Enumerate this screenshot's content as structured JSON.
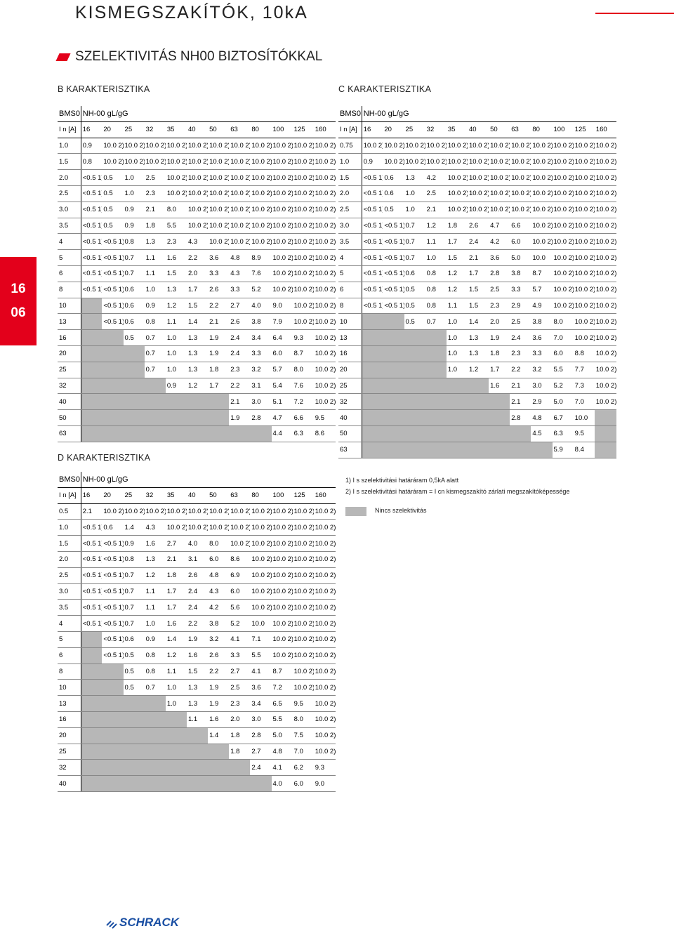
{
  "title": "KISMEGSZAKÍTÓK, 10kA",
  "subtitle": "SZELEKTIVITÁS NH00 BIZTOSÍTÓKKAL",
  "side_tab": {
    "top": "16",
    "bottom": "06"
  },
  "labels": {
    "b": "B KARAKTERISZTIKA",
    "c": "C KARAKTERISZTIKA",
    "d": "D KARAKTERISZTIKA"
  },
  "header_bms": "BMS0",
  "header_fuse": "NH-00 gL/gG",
  "in_label": "I n [A]",
  "fuse_ratings": [
    "16",
    "20",
    "25",
    "32",
    "35",
    "40",
    "50",
    "63",
    "80",
    "100",
    "125",
    "160"
  ],
  "tables": {
    "b": [
      [
        "1.0",
        "0.9",
        "10.0 2)",
        "10.0 2)",
        "10.0 2)",
        "10.0 2)",
        "10.0 2)",
        "10.0 2)",
        "10.0 2)",
        "10.0 2)",
        "10.0 2)",
        "10.0 2)",
        "10.0 2)"
      ],
      [
        "1.5",
        "0.8",
        "10.0 2)",
        "10.0 2)",
        "10.0 2)",
        "10.0 2)",
        "10.0 2)",
        "10.0 2)",
        "10.0 2)",
        "10.0 2)",
        "10.0 2)",
        "10.0 2)",
        "10.0 2)"
      ],
      [
        "2.0",
        "<0.5 1)",
        "0.5",
        "1.0",
        "2.5",
        "10.0 2)",
        "10.0 2)",
        "10.0 2)",
        "10.0 2)",
        "10.0 2)",
        "10.0 2)",
        "10.0 2)",
        "10.0 2)"
      ],
      [
        "2.5",
        "<0.5 1)",
        "0.5",
        "1.0",
        "2.3",
        "10.0 2)",
        "10.0 2)",
        "10.0 2)",
        "10.0 2)",
        "10.0 2)",
        "10.0 2)",
        "10.0 2)",
        "10.0 2)"
      ],
      [
        "3.0",
        "<0.5 1)",
        "0.5",
        "0.9",
        "2.1",
        "8.0",
        "10.0 2)",
        "10.0 2)",
        "10.0 2)",
        "10.0 2)",
        "10.0 2)",
        "10.0 2)",
        "10.0 2)"
      ],
      [
        "3.5",
        "<0.5 1)",
        "0.5",
        "0.9",
        "1.8",
        "5.5",
        "10.0 2)",
        "10.0 2)",
        "10.0 2)",
        "10.0 2)",
        "10.0 2)",
        "10.0 2)",
        "10.0 2)"
      ],
      [
        "4",
        "<0.5 1)",
        "<0.5 1)",
        "0.8",
        "1.3",
        "2.3",
        "4.3",
        "10.0 2)",
        "10.0 2)",
        "10.0 2)",
        "10.0 2)",
        "10.0 2)",
        "10.0 2)"
      ],
      [
        "5",
        "<0.5 1)",
        "<0.5 1)",
        "0.7",
        "1.1",
        "1.6",
        "2.2",
        "3.6",
        "4.8",
        "8.9",
        "10.0 2)",
        "10.0 2)",
        "10.0 2)"
      ],
      [
        "6",
        "<0.5 1)",
        "<0.5 1)",
        "0.7",
        "1.1",
        "1.5",
        "2.0",
        "3.3",
        "4.3",
        "7.6",
        "10.0 2)",
        "10.0 2)",
        "10.0 2)"
      ],
      [
        "8",
        "<0.5 1)",
        "<0.5 1)",
        "0.6",
        "1.0",
        "1.3",
        "1.7",
        "2.6",
        "3.3",
        "5.2",
        "10.0 2)",
        "10.0 2)",
        "10.0 2)"
      ],
      [
        "10",
        "",
        "<0.5 1)",
        "0.6",
        "0.9",
        "1.2",
        "1.5",
        "2.2",
        "2.7",
        "4.0",
        "9.0",
        "10.0 2)",
        "10.0 2)"
      ],
      [
        "13",
        "",
        "<0.5 1)",
        "0.6",
        "0.8",
        "1.1",
        "1.4",
        "2.1",
        "2.6",
        "3.8",
        "7.9",
        "10.0 2)",
        "10.0 2)"
      ],
      [
        "16",
        "",
        "",
        "0.5",
        "0.7",
        "1.0",
        "1.3",
        "1.9",
        "2.4",
        "3.4",
        "6.4",
        "9.3",
        "10.0 2)"
      ],
      [
        "20",
        "",
        "",
        "",
        "0.7",
        "1.0",
        "1.3",
        "1.9",
        "2.4",
        "3.3",
        "6.0",
        "8.7",
        "10.0 2)"
      ],
      [
        "25",
        "",
        "",
        "",
        "0.7",
        "1.0",
        "1.3",
        "1.8",
        "2.3",
        "3.2",
        "5.7",
        "8.0",
        "10.0 2)"
      ],
      [
        "32",
        "",
        "",
        "",
        "",
        "0.9",
        "1.2",
        "1.7",
        "2.2",
        "3.1",
        "5.4",
        "7.6",
        "10.0 2)"
      ],
      [
        "40",
        "",
        "",
        "",
        "",
        "",
        "",
        "",
        "2.1",
        "3.0",
        "5.1",
        "7.2",
        "10.0 2)"
      ],
      [
        "50",
        "",
        "",
        "",
        "",
        "",
        "",
        "",
        "1.9",
        "2.8",
        "4.7",
        "6.6",
        "9.5"
      ],
      [
        "63",
        "",
        "",
        "",
        "",
        "",
        "",
        "",
        "",
        "",
        "4.4",
        "6.3",
        "8.6"
      ]
    ],
    "c": [
      [
        "0.75",
        "10.0 2)",
        "10.0 2)",
        "10.0 2)",
        "10.0 2)",
        "10.0 2)",
        "10.0 2)",
        "10.0 2)",
        "10.0 2)",
        "10.0 2)",
        "10.0 2)",
        "10.0 2)",
        "10.0 2)"
      ],
      [
        "1.0",
        "0.9",
        "10.0 2)",
        "10.0 2)",
        "10.0 2)",
        "10.0 2)",
        "10.0 2)",
        "10.0 2)",
        "10.0 2)",
        "10.0 2)",
        "10.0 2)",
        "10.0 2)",
        "10.0 2)"
      ],
      [
        "1.5",
        "<0.5 1)",
        "0.6",
        "1.3",
        "4.2",
        "10.0 2)",
        "10.0 2)",
        "10.0 2)",
        "10.0 2)",
        "10.0 2)",
        "10.0 2)",
        "10.0 2)",
        "10.0 2)"
      ],
      [
        "2.0",
        "<0.5 1)",
        "0.6",
        "1.0",
        "2.5",
        "10.0 2)",
        "10.0 2)",
        "10.0 2)",
        "10.0 2)",
        "10.0 2)",
        "10.0 2)",
        "10.0 2)",
        "10.0 2)"
      ],
      [
        "2.5",
        "<0.5 1)",
        "0.5",
        "1.0",
        "2.1",
        "10.0 2)",
        "10.0 2)",
        "10.0 2)",
        "10.0 2)",
        "10.0 2)",
        "10.0 2)",
        "10.0 2)",
        "10.0 2)"
      ],
      [
        "3.0",
        "<0.5 1)",
        "<0.5 1)",
        "0.7",
        "1.2",
        "1.8",
        "2.6",
        "4.7",
        "6.6",
        "10.0 2)",
        "10.0 2)",
        "10.0 2)",
        "10.0 2)"
      ],
      [
        "3.5",
        "<0.5 1)",
        "<0.5 1)",
        "0.7",
        "1.1",
        "1.7",
        "2.4",
        "4.2",
        "6.0",
        "10.0 2)",
        "10.0 2)",
        "10.0 2)",
        "10.0 2)"
      ],
      [
        "4",
        "<0.5 1)",
        "<0.5 1)",
        "0.7",
        "1.0",
        "1.5",
        "2.1",
        "3.6",
        "5.0",
        "10.0",
        "10.0 2)",
        "10.0 2)",
        "10.0 2)"
      ],
      [
        "5",
        "<0.5 1)",
        "<0.5 1)",
        "0.6",
        "0.8",
        "1.2",
        "1.7",
        "2.8",
        "3.8",
        "8.7",
        "10.0 2)",
        "10.0 2)",
        "10.0 2)"
      ],
      [
        "6",
        "<0.5 1)",
        "<0.5 1)",
        "0.5",
        "0.8",
        "1.2",
        "1.5",
        "2.5",
        "3.3",
        "5.7",
        "10.0 2)",
        "10.0 2)",
        "10.0 2)"
      ],
      [
        "8",
        "<0.5 1)",
        "<0.5 1)",
        "0.5",
        "0.8",
        "1.1",
        "1.5",
        "2.3",
        "2.9",
        "4.9",
        "10.0 2)",
        "10.0 2)",
        "10.0 2)"
      ],
      [
        "10",
        "",
        "",
        "0.5",
        "0.7",
        "1.0",
        "1.4",
        "2.0",
        "2.5",
        "3.8",
        "8.0",
        "10.0 2)",
        "10.0 2)"
      ],
      [
        "13",
        "",
        "",
        "",
        "",
        "1.0",
        "1.3",
        "1.9",
        "2.4",
        "3.6",
        "7.0",
        "10.0 2)",
        "10.0 2)"
      ],
      [
        "16",
        "",
        "",
        "",
        "",
        "1.0",
        "1.3",
        "1.8",
        "2.3",
        "3.3",
        "6.0",
        "8.8",
        "10.0 2)"
      ],
      [
        "20",
        "",
        "",
        "",
        "",
        "1.0",
        "1.2",
        "1.7",
        "2.2",
        "3.2",
        "5.5",
        "7.7",
        "10.0 2)"
      ],
      [
        "25",
        "",
        "",
        "",
        "",
        "",
        "",
        "1.6",
        "2.1",
        "3.0",
        "5.2",
        "7.3",
        "10.0 2)"
      ],
      [
        "32",
        "",
        "",
        "",
        "",
        "",
        "",
        "",
        "2.1",
        "2.9",
        "5.0",
        "7.0",
        "10.0 2)"
      ],
      [
        "40",
        "",
        "",
        "",
        "",
        "",
        "",
        "",
        "2.8",
        "4.8",
        "6.7",
        "10.0",
        ""
      ],
      [
        "50",
        "",
        "",
        "",
        "",
        "",
        "",
        "",
        "",
        "4.5",
        "6.3",
        "9.5",
        ""
      ],
      [
        "63",
        "",
        "",
        "",
        "",
        "",
        "",
        "",
        "",
        "",
        "5.9",
        "8.4",
        ""
      ]
    ],
    "d": [
      [
        "0.5",
        "2.1",
        "10.0 2)",
        "10.0 2)",
        "10.0 2)",
        "10.0 2)",
        "10.0 2)",
        "10.0 2)",
        "10.0 2)",
        "10.0 2)",
        "10.0 2)",
        "10.0 2)",
        "10.0 2)"
      ],
      [
        "1.0",
        "<0.5 1)",
        "0.6",
        "1.4",
        "4.3",
        "10.0 2)",
        "10.0 2)",
        "10.0 2)",
        "10.0 2)",
        "10.0 2)",
        "10.0 2)",
        "10.0 2)",
        "10.0 2)"
      ],
      [
        "1.5",
        "<0.5 1)",
        "<0.5 1)",
        "0.9",
        "1.6",
        "2.7",
        "4.0",
        "8.0",
        "10.0 2)",
        "10.0 2)",
        "10.0 2)",
        "10.0 2)",
        "10.0 2)"
      ],
      [
        "2.0",
        "<0.5 1)",
        "<0.5 1)",
        "0.8",
        "1.3",
        "2.1",
        "3.1",
        "6.0",
        "8.6",
        "10.0 2)",
        "10.0 2)",
        "10.0 2)",
        "10.0 2)"
      ],
      [
        "2.5",
        "<0.5 1)",
        "<0.5 1)",
        "0.7",
        "1.2",
        "1.8",
        "2.6",
        "4.8",
        "6.9",
        "10.0 2)",
        "10.0 2)",
        "10.0 2)",
        "10.0 2)"
      ],
      [
        "3.0",
        "<0.5 1)",
        "<0.5 1)",
        "0.7",
        "1.1",
        "1.7",
        "2.4",
        "4.3",
        "6.0",
        "10.0 2)",
        "10.0 2)",
        "10.0 2)",
        "10.0 2)"
      ],
      [
        "3.5",
        "<0.5 1)",
        "<0.5 1)",
        "0.7",
        "1.1",
        "1.7",
        "2.4",
        "4.2",
        "5.6",
        "10.0 2)",
        "10.0 2)",
        "10.0 2)",
        "10.0 2)"
      ],
      [
        "4",
        "<0.5 1)",
        "<0.5 1)",
        "0.7",
        "1.0",
        "1.6",
        "2.2",
        "3.8",
        "5.2",
        "10.0",
        "10.0 2)",
        "10.0 2)",
        "10.0 2)"
      ],
      [
        "5",
        "",
        "<0.5 1)",
        "0.6",
        "0.9",
        "1.4",
        "1.9",
        "3.2",
        "4.1",
        "7.1",
        "10.0 2)",
        "10.0 2)",
        "10.0 2)"
      ],
      [
        "6",
        "",
        "<0.5 1)",
        "0.5",
        "0.8",
        "1.2",
        "1.6",
        "2.6",
        "3.3",
        "5.5",
        "10.0 2)",
        "10.0 2)",
        "10.0 2)"
      ],
      [
        "8",
        "",
        "",
        "0.5",
        "0.8",
        "1.1",
        "1.5",
        "2.2",
        "2.7",
        "4.1",
        "8.7",
        "10.0 2)",
        "10.0 2)"
      ],
      [
        "10",
        "",
        "",
        "0.5",
        "0.7",
        "1.0",
        "1.3",
        "1.9",
        "2.5",
        "3.6",
        "7.2",
        "10.0 2)",
        "10.0 2)"
      ],
      [
        "13",
        "",
        "",
        "",
        "",
        "1.0",
        "1.3",
        "1.9",
        "2.3",
        "3.4",
        "6.5",
        "9.5",
        "10.0 2)"
      ],
      [
        "16",
        "",
        "",
        "",
        "",
        "",
        "1.1",
        "1.6",
        "2.0",
        "3.0",
        "5.5",
        "8.0",
        "10.0 2)"
      ],
      [
        "20",
        "",
        "",
        "",
        "",
        "",
        "",
        "1.4",
        "1.8",
        "2.8",
        "5.0",
        "7.5",
        "10.0 2)"
      ],
      [
        "25",
        "",
        "",
        "",
        "",
        "",
        "",
        "",
        "1.8",
        "2.7",
        "4.8",
        "7.0",
        "10.0 2)"
      ],
      [
        "32",
        "",
        "",
        "",
        "",
        "",
        "",
        "",
        "",
        "2.4",
        "4.1",
        "6.2",
        "9.3"
      ],
      [
        "40",
        "",
        "",
        "",
        "",
        "",
        "",
        "",
        "",
        "",
        "4.0",
        "6.0",
        "9.0"
      ]
    ]
  },
  "notes": [
    "1) I s szelektivitási határáram 0,5kA alatt",
    "2) I s szelektivitási határáram = I cn kismegszakító zárlati megszakítóképessége"
  ],
  "legend": "Nincs szelektivitás",
  "logo_text": "SCHRACK",
  "colors": {
    "accent": "#e3001b",
    "no_selectivity": "#b7b7b7"
  }
}
